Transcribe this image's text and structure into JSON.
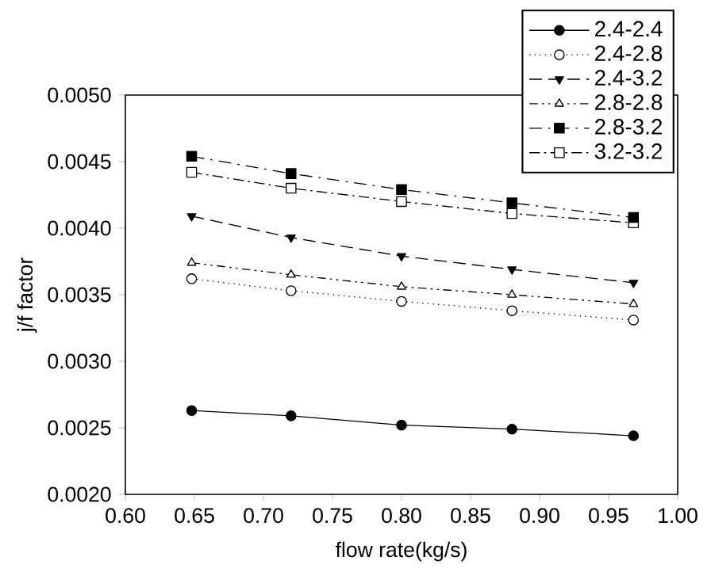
{
  "chart_data": {
    "type": "line",
    "xlabel": "flow rate(kg/s)",
    "ylabel": "j/f factor",
    "x": [
      0.648,
      0.72,
      0.8,
      0.88,
      0.968
    ],
    "xlim": [
      0.6,
      1.0
    ],
    "ylim": [
      0.002,
      0.005
    ],
    "xticks": [
      {
        "value": 0.6,
        "label": "0.60"
      },
      {
        "value": 0.65,
        "label": "0.65"
      },
      {
        "value": 0.7,
        "label": "0.70"
      },
      {
        "value": 0.75,
        "label": "0.75"
      },
      {
        "value": 0.8,
        "label": "0.80"
      },
      {
        "value": 0.85,
        "label": "0.85"
      },
      {
        "value": 0.9,
        "label": "0.90"
      },
      {
        "value": 0.95,
        "label": "0.95"
      },
      {
        "value": 1.0,
        "label": "1.00"
      }
    ],
    "yticks": [
      {
        "value": 0.002,
        "label": "0.0020"
      },
      {
        "value": 0.0025,
        "label": "0.0025"
      },
      {
        "value": 0.003,
        "label": "0.0030"
      },
      {
        "value": 0.0035,
        "label": "0.0035"
      },
      {
        "value": 0.004,
        "label": "0.0040"
      },
      {
        "value": 0.0045,
        "label": "0.0045"
      },
      {
        "value": 0.005,
        "label": "0.0050"
      }
    ],
    "grid": false,
    "legend": "top right",
    "series": [
      {
        "name": "2.4-2.4",
        "color": "#000000",
        "marker": "circle",
        "line_style": "solid",
        "values": [
          0.00263,
          0.00259,
          0.00252,
          0.00249,
          0.00244
        ]
      },
      {
        "name": "2.4-2.8",
        "color": "#000000",
        "marker": "circle",
        "line_style": "dotted",
        "values": [
          0.00362,
          0.00353,
          0.00345,
          0.00338,
          0.00331
        ]
      },
      {
        "name": "2.4-3.2",
        "color": "#000000",
        "marker": "triangle",
        "line_style": "dashed",
        "values": [
          0.00409,
          0.00393,
          0.00379,
          0.00369,
          0.00359
        ]
      },
      {
        "name": "2.8-2.8",
        "color": "#000000",
        "marker": "triangle",
        "line_style": "dashed",
        "values": [
          0.00374,
          0.00365,
          0.00356,
          0.0035,
          0.00343
        ]
      },
      {
        "name": "2.8-3.2",
        "color": "#000000",
        "marker": "square",
        "line_style": "dashed",
        "values": [
          0.00454,
          0.00441,
          0.00429,
          0.00419,
          0.00408
        ]
      },
      {
        "name": "3.2-3.2",
        "color": "#000000",
        "marker": "square",
        "line_style": "dashed",
        "values": [
          0.00442,
          0.0043,
          0.0042,
          0.00411,
          0.00404
        ]
      }
    ]
  }
}
